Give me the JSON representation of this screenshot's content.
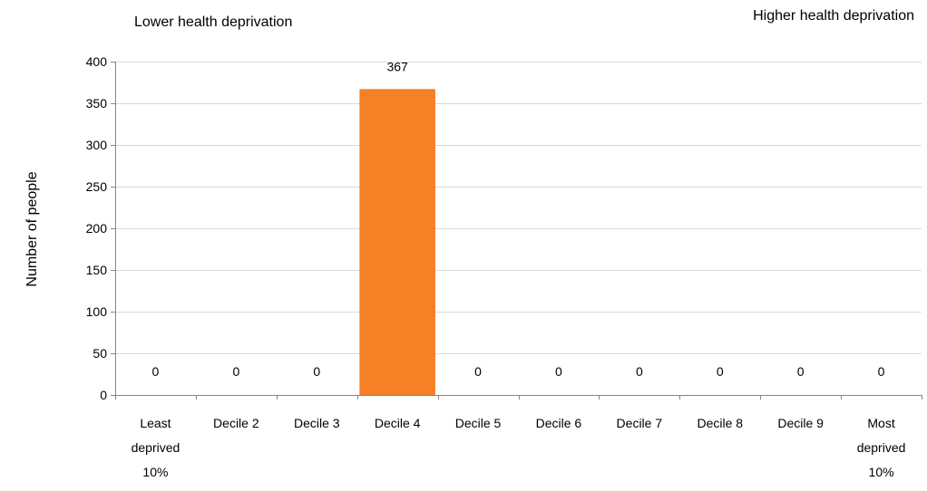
{
  "annotations": {
    "left": "Lower health deprivation",
    "right": "Higher health deprivation"
  },
  "chart_data": {
    "type": "bar",
    "title": "",
    "xlabel": "",
    "ylabel": "Number of people",
    "ylim": [
      0,
      400
    ],
    "yticks": [
      0,
      50,
      100,
      150,
      200,
      250,
      300,
      350,
      400
    ],
    "categories": [
      [
        "Least",
        "deprived",
        "10%"
      ],
      [
        "Decile 2"
      ],
      [
        "Decile 3"
      ],
      [
        "Decile 4"
      ],
      [
        "Decile 5"
      ],
      [
        "Decile 6"
      ],
      [
        "Decile 7"
      ],
      [
        "Decile 8"
      ],
      [
        "Decile 9"
      ],
      [
        "Most",
        "deprived",
        "10%"
      ]
    ],
    "values": [
      0,
      0,
      0,
      367,
      0,
      0,
      0,
      0,
      0,
      0
    ],
    "data_labels": [
      "0",
      "0",
      "0",
      "367",
      "0",
      "0",
      "0",
      "0",
      "0",
      "0"
    ],
    "bar_color": "#F58025",
    "grid": true,
    "gridline_color": "#D9D9D9",
    "axis_color": "#868686",
    "legend": false
  }
}
